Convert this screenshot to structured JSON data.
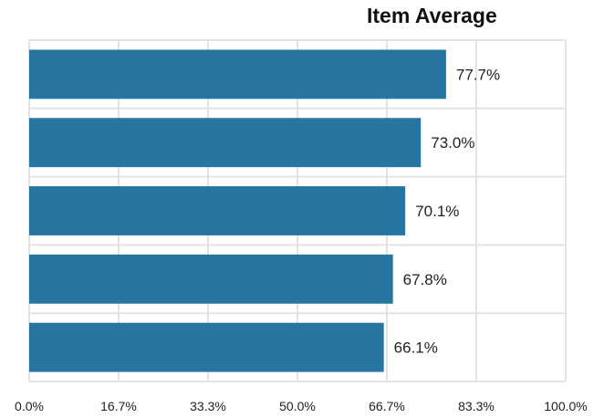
{
  "chart_data": {
    "type": "bar",
    "orientation": "horizontal",
    "title": "Item Average",
    "xlabel": "",
    "ylabel": "",
    "xlim": [
      0,
      100
    ],
    "x_ticks": [
      "0.0%",
      "16.7%",
      "33.3%",
      "50.0%",
      "66.7%",
      "83.3%",
      "100.0%"
    ],
    "values": [
      77.7,
      73.0,
      70.1,
      67.8,
      66.1
    ],
    "data_labels": [
      "77.7%",
      "73.0%",
      "70.1%",
      "67.8%",
      "66.1%"
    ],
    "bar_color": "#2676a1",
    "grid": true,
    "legend": "none"
  }
}
